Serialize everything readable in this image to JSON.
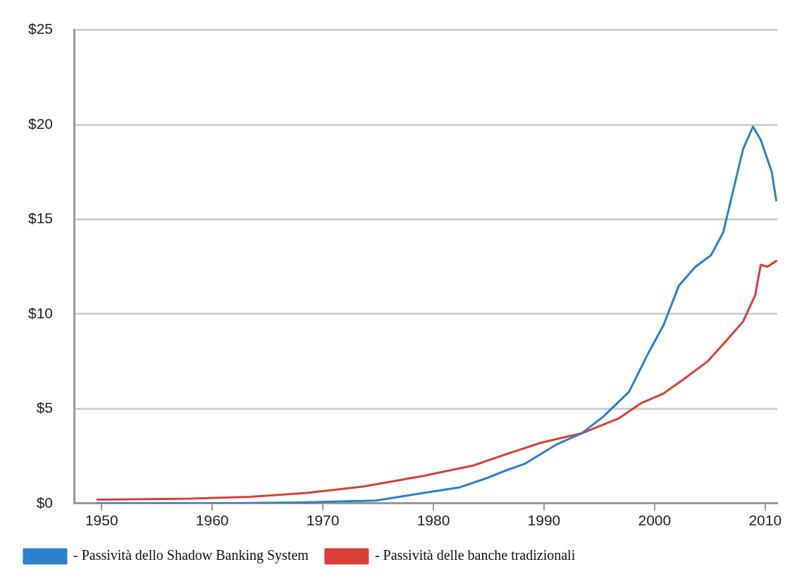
{
  "chart_data": {
    "type": "line",
    "xlim": [
      1947.5,
      2011.1
    ],
    "xticks": [
      1950,
      1960,
      1970,
      1980,
      1990,
      2000,
      2010
    ],
    "ylim": [
      0,
      25
    ],
    "yticks": [
      {
        "value": 0,
        "label": "$0"
      },
      {
        "value": 5,
        "label": "$5"
      },
      {
        "value": 10,
        "label": "$10"
      },
      {
        "value": 15,
        "label": "$15"
      },
      {
        "value": 20,
        "label": "$20"
      },
      {
        "value": 25,
        "label": "$25"
      }
    ],
    "grid": "y",
    "legend": "bottom",
    "marker": "none",
    "line_style": "solid",
    "series": [
      {
        "name": "- Passività dello Shadow Banking System",
        "color": "#2e7fcb",
        "x": [
          1949.6,
          1960,
          1968,
          1974.8,
          1979.1,
          1982.4,
          1984.9,
          1986.6,
          1988.3,
          1991.1,
          1993.4,
          1995.4,
          1997.7,
          1999.4,
          2000.8,
          2002.2,
          2003.7,
          2005.1,
          2006.2,
          2008.0,
          2008.9,
          2009.6,
          2010.6,
          2011.0
        ],
        "values": [
          0,
          0,
          0.05,
          0.15,
          0.55,
          0.85,
          1.35,
          1.75,
          2.1,
          3.1,
          3.7,
          4.6,
          5.9,
          7.9,
          9.4,
          11.5,
          12.5,
          13.1,
          14.3,
          18.7,
          19.9,
          19.2,
          17.5,
          16.0
        ]
      },
      {
        "name": "- Passività delle banche tradizionali",
        "color": "#d9403a",
        "x": [
          1949.6,
          1958.1,
          1963.4,
          1968.5,
          1973.8,
          1979.1,
          1983.6,
          1986.6,
          1989.7,
          1993.4,
          1996.8,
          1998.8,
          2000.8,
          2002.5,
          2004.8,
          2006.5,
          2008.0,
          2009.1,
          2009.6,
          2010.2,
          2011.0
        ],
        "values": [
          0.2,
          0.25,
          0.35,
          0.55,
          0.9,
          1.45,
          2.0,
          2.6,
          3.2,
          3.7,
          4.5,
          5.3,
          5.8,
          6.5,
          7.5,
          8.6,
          9.6,
          11.0,
          12.6,
          12.5,
          12.8
        ]
      }
    ]
  }
}
